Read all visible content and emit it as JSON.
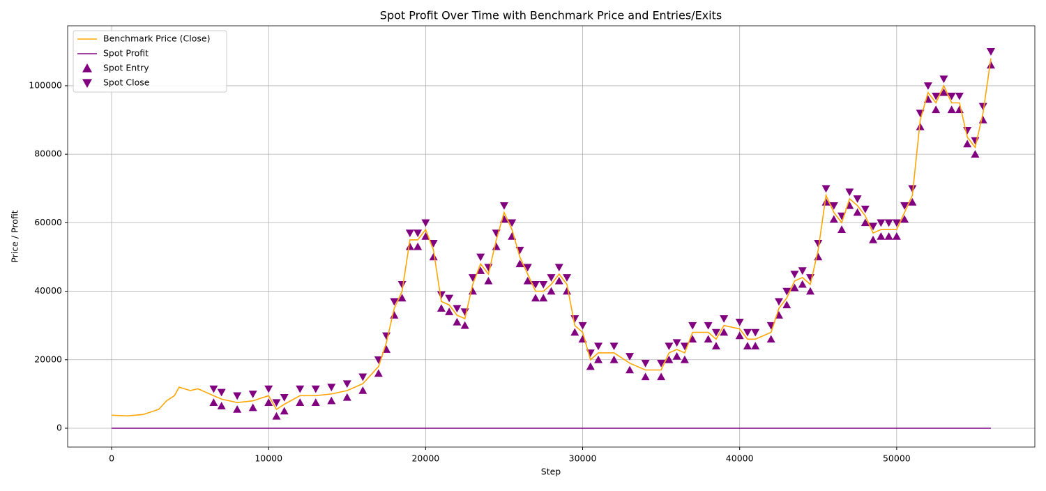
{
  "chart_data": {
    "type": "line",
    "title": "Spot Profit Over Time with Benchmark Price and Entries/Exits",
    "x_label": "Step",
    "y_label": "Price / Profit",
    "xlim": [
      -2800,
      58800
    ],
    "ylim": [
      -5500,
      117500
    ],
    "xticks": [
      0,
      10000,
      20000,
      30000,
      40000,
      50000
    ],
    "yticks": [
      0,
      20000,
      40000,
      60000,
      80000,
      100000
    ],
    "grid": true,
    "legend": "upper left",
    "series": [
      {
        "name": "Benchmark Price (Close)",
        "color": "#ffa500",
        "kind": "line",
        "x": [
          0,
          1000,
          2000,
          3000,
          3500,
          4000,
          4300,
          5000,
          5500,
          6000,
          6500,
          7000,
          8000,
          9000,
          10000,
          10500,
          11000,
          12000,
          13000,
          14000,
          15000,
          16000,
          17000,
          17500,
          18000,
          18500,
          19000,
          19500,
          20000,
          20500,
          21000,
          21500,
          22000,
          22500,
          23000,
          23500,
          24000,
          24500,
          25000,
          25500,
          26000,
          26500,
          27000,
          27500,
          28000,
          28500,
          29000,
          29500,
          30000,
          30500,
          31000,
          32000,
          33000,
          34000,
          35000,
          35500,
          36000,
          36500,
          37000,
          38000,
          38500,
          39000,
          40000,
          40500,
          41000,
          42000,
          42500,
          43000,
          43500,
          44000,
          44500,
          45000,
          45500,
          46000,
          46500,
          47000,
          47500,
          48000,
          48500,
          49000,
          49500,
          50000,
          50500,
          51000,
          51500,
          52000,
          52500,
          53000,
          53500,
          54000,
          54500,
          55000,
          55500,
          56000
        ],
        "values": [
          3800,
          3600,
          4000,
          5500,
          8000,
          9500,
          12000,
          11000,
          11500,
          10500,
          9500,
          8500,
          7500,
          8000,
          9500,
          5500,
          7000,
          9500,
          9500,
          10000,
          11000,
          13000,
          18000,
          25000,
          35000,
          40000,
          55000,
          55000,
          58000,
          52000,
          37000,
          36000,
          33000,
          32000,
          42000,
          48000,
          45000,
          55000,
          63000,
          58000,
          50000,
          45000,
          40000,
          40000,
          42000,
          45000,
          42000,
          30000,
          28000,
          20000,
          22000,
          22000,
          19000,
          17000,
          17000,
          22000,
          23000,
          22000,
          28000,
          28000,
          26000,
          30000,
          29000,
          26000,
          26000,
          28000,
          35000,
          38000,
          43000,
          44000,
          42000,
          52000,
          68000,
          63000,
          60000,
          67000,
          65000,
          62000,
          57000,
          58000,
          58000,
          58000,
          63000,
          68000,
          90000,
          98000,
          95000,
          100000,
          95000,
          95000,
          85000,
          82000,
          92000,
          108000
        ]
      },
      {
        "name": "Spot Profit",
        "color": "#800080",
        "kind": "line",
        "x": [
          0,
          56000
        ],
        "values": [
          0,
          0
        ]
      },
      {
        "name": "Spot Entry",
        "color": "#800080",
        "kind": "entry",
        "x": [
          6500,
          7000,
          8000,
          9000,
          10000,
          10500,
          11000,
          12000,
          13000,
          14000,
          15000,
          16000,
          17000,
          17500,
          18000,
          18500,
          19000,
          19500,
          20000,
          20500,
          21000,
          21500,
          22000,
          22500,
          23000,
          23500,
          24000,
          24500,
          25000,
          25500,
          26000,
          26500,
          27000,
          27500,
          28000,
          28500,
          29000,
          29500,
          30000,
          30500,
          31000,
          32000,
          33000,
          34000,
          35000,
          35500,
          36000,
          36500,
          37000,
          38000,
          38500,
          39000,
          40000,
          40500,
          41000,
          42000,
          42500,
          43000,
          43500,
          44000,
          44500,
          45000,
          45500,
          46000,
          46500,
          47000,
          47500,
          48000,
          48500,
          49000,
          49500,
          50000,
          50500,
          51000,
          51500,
          52000,
          52500,
          53000,
          53500,
          54000,
          54500,
          55000,
          55500,
          56000
        ],
        "values": [
          7500,
          6500,
          5500,
          6000,
          7500,
          3500,
          5000,
          7500,
          7500,
          8000,
          9000,
          11000,
          16000,
          23000,
          33000,
          38000,
          53000,
          53000,
          56000,
          50000,
          35000,
          34000,
          31000,
          30000,
          40000,
          46000,
          43000,
          53000,
          61000,
          56000,
          48000,
          43000,
          38000,
          38000,
          40000,
          43000,
          40000,
          28000,
          26000,
          18000,
          20000,
          20000,
          17000,
          15000,
          15000,
          20000,
          21000,
          20000,
          26000,
          26000,
          24000,
          28000,
          27000,
          24000,
          24000,
          26000,
          33000,
          36000,
          41000,
          42000,
          40000,
          50000,
          66000,
          61000,
          58000,
          65000,
          63000,
          60000,
          55000,
          56000,
          56000,
          56000,
          61000,
          66000,
          88000,
          96000,
          93000,
          98000,
          93000,
          93000,
          83000,
          80000,
          90000,
          106000
        ]
      },
      {
        "name": "Spot Close",
        "color": "#800080",
        "kind": "close",
        "x": [
          6500,
          7000,
          8000,
          9000,
          10000,
          10500,
          11000,
          12000,
          13000,
          14000,
          15000,
          16000,
          17000,
          17500,
          18000,
          18500,
          19000,
          19500,
          20000,
          20500,
          21000,
          21500,
          22000,
          22500,
          23000,
          23500,
          24000,
          24500,
          25000,
          25500,
          26000,
          26500,
          27000,
          27500,
          28000,
          28500,
          29000,
          29500,
          30000,
          30500,
          31000,
          32000,
          33000,
          34000,
          35000,
          35500,
          36000,
          36500,
          37000,
          38000,
          38500,
          39000,
          40000,
          40500,
          41000,
          42000,
          42500,
          43000,
          43500,
          44000,
          44500,
          45000,
          45500,
          46000,
          46500,
          47000,
          47500,
          48000,
          48500,
          49000,
          49500,
          50000,
          50500,
          51000,
          51500,
          52000,
          52500,
          53000,
          53500,
          54000,
          54500,
          55000,
          55500,
          56000
        ],
        "values": [
          11500,
          10500,
          9500,
          10000,
          11500,
          7500,
          9000,
          11500,
          11500,
          12000,
          13000,
          15000,
          20000,
          27000,
          37000,
          42000,
          57000,
          57000,
          60000,
          54000,
          39000,
          38000,
          35000,
          34000,
          44000,
          50000,
          47000,
          57000,
          65000,
          60000,
          52000,
          47000,
          42000,
          42000,
          44000,
          47000,
          44000,
          32000,
          30000,
          22000,
          24000,
          24000,
          21000,
          19000,
          19000,
          24000,
          25000,
          24000,
          30000,
          30000,
          28000,
          32000,
          31000,
          28000,
          28000,
          30000,
          37000,
          40000,
          45000,
          46000,
          44000,
          54000,
          70000,
          65000,
          62000,
          69000,
          67000,
          64000,
          59000,
          60000,
          60000,
          60000,
          65000,
          70000,
          92000,
          100000,
          97000,
          102000,
          97000,
          97000,
          87000,
          84000,
          94000,
          110000
        ]
      }
    ]
  }
}
